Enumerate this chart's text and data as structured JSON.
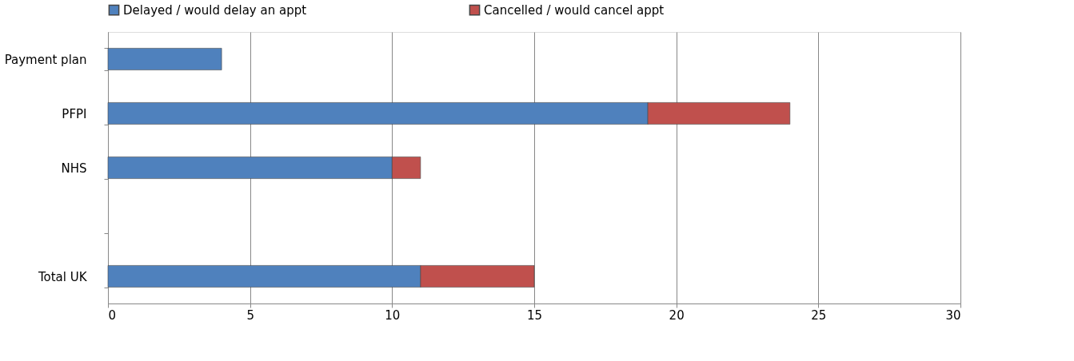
{
  "chart_data": {
    "type": "bar",
    "orientation": "horizontal",
    "stacked": true,
    "categories": [
      "Payment plan",
      "PFPI",
      "NHS",
      null,
      "Total UK"
    ],
    "series": [
      {
        "name": "Delayed / would delay an appt",
        "color": "#4f81bd",
        "values": [
          4,
          19,
          10,
          null,
          11
        ]
      },
      {
        "name": "Cancelled / would cancel appt",
        "color": "#c0504d",
        "values": [
          null,
          5,
          1,
          null,
          4
        ]
      }
    ],
    "xlim": [
      0,
      30
    ],
    "xticks": [
      0,
      5,
      10,
      15,
      20,
      25,
      30
    ],
    "grid": "x",
    "legend": "top"
  }
}
